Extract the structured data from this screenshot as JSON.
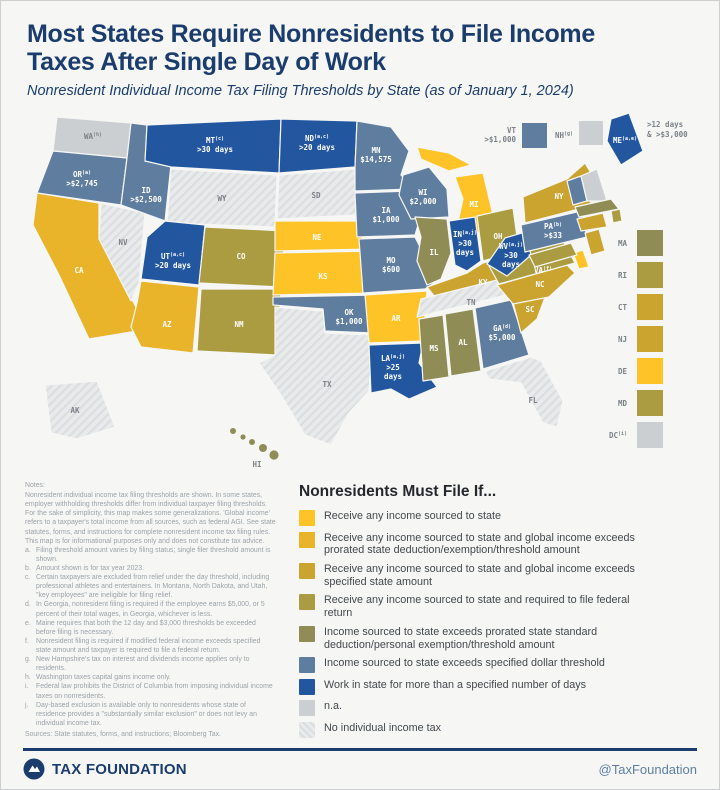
{
  "header": {
    "title_lines": [
      "Most States Require Nonresidents to File Income",
      "Taxes After Single Day of Work"
    ],
    "subtitle": "Nonresident Individual Income Tax Filing Thresholds by State (as of January 1, 2024)"
  },
  "palette": {
    "y1": "#FEC326",
    "y2": "#E9B42A",
    "y3": "#CBA32F",
    "y4": "#AC9C41",
    "olive": "#8F8D55",
    "blue": "#5F7D9F",
    "navy": "#2257A0",
    "na": "#CBCFD2",
    "notax": "#E8EAEB"
  },
  "chart_data": {
    "type": "heatmap",
    "title": "Nonresident Individual Income Tax Filing Thresholds by State (as of January 1, 2024)",
    "legend_position": "bottom-right",
    "states": [
      {
        "code": "WA",
        "sup": "(h)",
        "cat": "na"
      },
      {
        "code": "OR",
        "sup": "(a)",
        "value": ">$2,745",
        "cat": "blue"
      },
      {
        "code": "CA",
        "cat": "y2"
      },
      {
        "code": "NV",
        "cat": "notax"
      },
      {
        "code": "ID",
        "value": ">$2,500",
        "cat": "blue"
      },
      {
        "code": "MT",
        "sup": "(c)",
        "value": ">30 days",
        "cat": "navy"
      },
      {
        "code": "WY",
        "cat": "notax"
      },
      {
        "code": "UT",
        "sup": "(a,c)",
        "value": ">20 days",
        "cat": "navy"
      },
      {
        "code": "AZ",
        "cat": "y2"
      },
      {
        "code": "NM",
        "cat": "y4"
      },
      {
        "code": "CO",
        "cat": "y4"
      },
      {
        "code": "ND",
        "sup": "(a,c)",
        "value": ">20 days",
        "cat": "navy"
      },
      {
        "code": "SD",
        "cat": "notax"
      },
      {
        "code": "NE",
        "cat": "y1"
      },
      {
        "code": "KS",
        "cat": "y1"
      },
      {
        "code": "OK",
        "value": "$1,000",
        "cat": "blue"
      },
      {
        "code": "TX",
        "cat": "notax"
      },
      {
        "code": "MN",
        "value": "$14,575",
        "cat": "blue"
      },
      {
        "code": "IA",
        "value": "$1,000",
        "cat": "blue"
      },
      {
        "code": "MO",
        "value": "$600",
        "cat": "blue"
      },
      {
        "code": "AR",
        "cat": "y1"
      },
      {
        "code": "LA",
        "sup": "(a,j)",
        "value": ">25\ndays",
        "cat": "navy"
      },
      {
        "code": "WI",
        "value": "$2,000",
        "cat": "blue"
      },
      {
        "code": "IL",
        "cat": "olive"
      },
      {
        "code": "MI",
        "cat": "y1"
      },
      {
        "code": "IN",
        "sup": "(a,j)",
        "value": ">30\ndays",
        "cat": "navy"
      },
      {
        "code": "OH",
        "cat": "y4"
      },
      {
        "code": "KY",
        "cat": "y3"
      },
      {
        "code": "TN",
        "cat": "notax"
      },
      {
        "code": "MS",
        "cat": "olive"
      },
      {
        "code": "AL",
        "cat": "olive"
      },
      {
        "code": "GA",
        "sup": "(d)",
        "value": "$5,000",
        "cat": "blue"
      },
      {
        "code": "FL",
        "cat": "notax"
      },
      {
        "code": "SC",
        "cat": "y3"
      },
      {
        "code": "NC",
        "cat": "y3"
      },
      {
        "code": "VA",
        "sup": "(f)",
        "cat": "y4"
      },
      {
        "code": "WV",
        "sup": "(a,j)",
        "value": ">30\ndays",
        "cat": "navy"
      },
      {
        "code": "PA",
        "sup": "(b)",
        "value": ">$33",
        "cat": "blue"
      },
      {
        "code": "NY",
        "cat": "y3"
      },
      {
        "code": "ME",
        "sup": "(a,e)",
        "cat": "navy"
      },
      {
        "code": "VT",
        "cat": "blue"
      },
      {
        "code": "NH",
        "cat": "na"
      },
      {
        "code": "MA",
        "cat": "olive"
      },
      {
        "code": "RI",
        "cat": "y4"
      },
      {
        "code": "CT",
        "cat": "y3"
      },
      {
        "code": "NJ",
        "cat": "y3"
      },
      {
        "code": "DE",
        "cat": "y1"
      },
      {
        "code": "MD",
        "cat": "y4"
      },
      {
        "code": "DC",
        "sup": "(i)",
        "cat": "na"
      },
      {
        "code": "AK",
        "cat": "notax"
      },
      {
        "code": "HI",
        "cat": "olive"
      }
    ]
  },
  "map": {
    "east_column": [
      {
        "code": "MA",
        "cat": "olive"
      },
      {
        "code": "RI",
        "cat": "y4"
      },
      {
        "code": "CT",
        "cat": "y3"
      },
      {
        "code": "NJ",
        "cat": "y3"
      },
      {
        "code": "DE",
        "cat": "y1"
      },
      {
        "code": "MD",
        "cat": "y4"
      },
      {
        "code": "DC",
        "sup": "(i)",
        "cat": "na"
      }
    ],
    "callouts": {
      "vt_code": "VT",
      "vt_value": ">$1,000",
      "vt_cat": "blue",
      "nh_code": "NH",
      "nh_sup": "(g)",
      "nh_cat": "na",
      "me_note_lines": [
        ">12 days",
        "& >$3,000"
      ]
    }
  },
  "legend": {
    "title": "Nonresidents Must File If...",
    "items": [
      {
        "cat": "y1",
        "label": "Receive any income sourced to state"
      },
      {
        "cat": "y2",
        "label": "Receive any income sourced to state and global income exceeds prorated state deduction/exemption/threshold amount"
      },
      {
        "cat": "y3",
        "label": "Receive any income sourced to state and global income exceeds specified state amount"
      },
      {
        "cat": "y4",
        "label": "Receive any income sourced to state and required to file federal return"
      },
      {
        "cat": "olive",
        "label": "Income sourced to state exceeds prorated state standard deduction/personal exemption/threshold amount"
      },
      {
        "cat": "blue",
        "label": "Income sourced to state exceeds specified dollar threshold"
      },
      {
        "cat": "navy",
        "label": "Work in state for more than a specified number of days"
      },
      {
        "cat": "na",
        "label": "n.a."
      },
      {
        "cat": "notax",
        "label": "No individual income tax"
      }
    ]
  },
  "notes": {
    "heading": "Notes:",
    "intro": "Nonresident individual income tax filing thresholds are shown. In some states, employer withholding thresholds differ from individual taxpayer filing thresholds. For the sake of simplicity, this map makes some generalizations. 'Global income' refers to a taxpayer's total income from all sources, such as federal AGI. See state statutes, forms, and instructions for complete nonresident income tax filing rules. This map is for informational purposes only and does not constitute tax advice.",
    "items": [
      {
        "k": "a.",
        "t": "Filing threshold amount varies by filing status; single filer threshold amount is shown."
      },
      {
        "k": "b.",
        "t": "Amount shown is for tax year 2023."
      },
      {
        "k": "c.",
        "t": "Certain taxpayers are excluded from relief under the day threshold, including professional athletes and entertainers. In Montana, North Dakota, and Utah, \"key employees\" are ineligible for filing relief."
      },
      {
        "k": "d.",
        "t": "In Georgia, nonresident filing is required if the employee earns $5,000, or 5 percent of their total wages, in Georgia, whichever is less."
      },
      {
        "k": "e.",
        "t": "Maine requires that both the 12 day and $3,000 thresholds be exceeded before filing is necessary."
      },
      {
        "k": "f.",
        "t": "Nonresident filing is required if modified federal income exceeds specified state amount and taxpayer is required to file a federal return."
      },
      {
        "k": "g.",
        "t": "New Hampshire's tax on interest and dividends income applies only to residents."
      },
      {
        "k": "h.",
        "t": "Washington taxes capital gains income only."
      },
      {
        "k": "i.",
        "t": "Federal law prohibits the District of Columbia from imposing individual income taxes on nonresidents."
      },
      {
        "k": "j.",
        "t": "Day-based exclusion is available only to nonresidents whose state of residence provides a \"substantially similar exclusion\" or does not levy an individual income tax."
      }
    ],
    "sources": "Sources: State statutes, forms, and instructions; Bloomberg Tax."
  },
  "footer": {
    "brand": "TAX FOUNDATION",
    "handle": "@TaxFoundation"
  }
}
